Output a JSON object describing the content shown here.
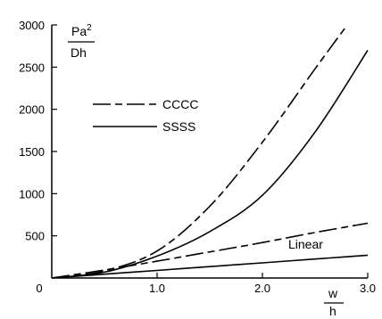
{
  "chart_data": {
    "type": "line",
    "xlim": [
      0,
      3
    ],
    "ylim": [
      0,
      3000
    ],
    "xticks": [
      {
        "value": 0,
        "label": "0"
      },
      {
        "value": 1,
        "label": "1.0"
      },
      {
        "value": 2,
        "label": "2.0"
      },
      {
        "value": 3,
        "label": "3.0"
      }
    ],
    "yticks": [
      {
        "value": 500,
        "label": "500"
      },
      {
        "value": 1000,
        "label": "1000"
      },
      {
        "value": 1500,
        "label": "1500"
      },
      {
        "value": 2000,
        "label": "2000"
      },
      {
        "value": 2500,
        "label": "2500"
      },
      {
        "value": 3000,
        "label": "3000"
      }
    ],
    "ylabel": {
      "numerator_base": "Pa",
      "numerator_sup": "2",
      "denominator": "Dh"
    },
    "xlabel": {
      "numerator": "w",
      "denominator": "h"
    },
    "legend": {
      "position": "upper-left",
      "entries": [
        {
          "label": "CCCC",
          "style": "dashed"
        },
        {
          "label": "SSSS",
          "style": "solid"
        }
      ]
    },
    "annotations": [
      {
        "text": "Linear"
      }
    ],
    "series": [
      {
        "name": "CCCC",
        "style": "dashed",
        "x": [
          0,
          0.5,
          1.0,
          1.5,
          2.0,
          2.5,
          2.8
        ],
        "y": [
          0,
          85,
          320,
          850,
          1610,
          2480,
          2990
        ]
      },
      {
        "name": "SSSS",
        "style": "solid",
        "x": [
          0,
          0.5,
          1.0,
          1.5,
          2.0,
          2.5,
          3.0
        ],
        "y": [
          0,
          70,
          260,
          550,
          980,
          1730,
          2700
        ]
      },
      {
        "name": "CCCC",
        "style": "dashed",
        "x": [
          0,
          0.5,
          1.0,
          1.5,
          2.0,
          2.5,
          3.0
        ],
        "y": [
          0,
          95,
          200,
          310,
          420,
          540,
          650
        ]
      },
      {
        "name": "SSSS",
        "style": "solid",
        "x": [
          0,
          0.5,
          1.0,
          1.5,
          2.0,
          2.5,
          3.0
        ],
        "y": [
          0,
          45,
          90,
          135,
          180,
          225,
          270
        ]
      }
    ]
  }
}
